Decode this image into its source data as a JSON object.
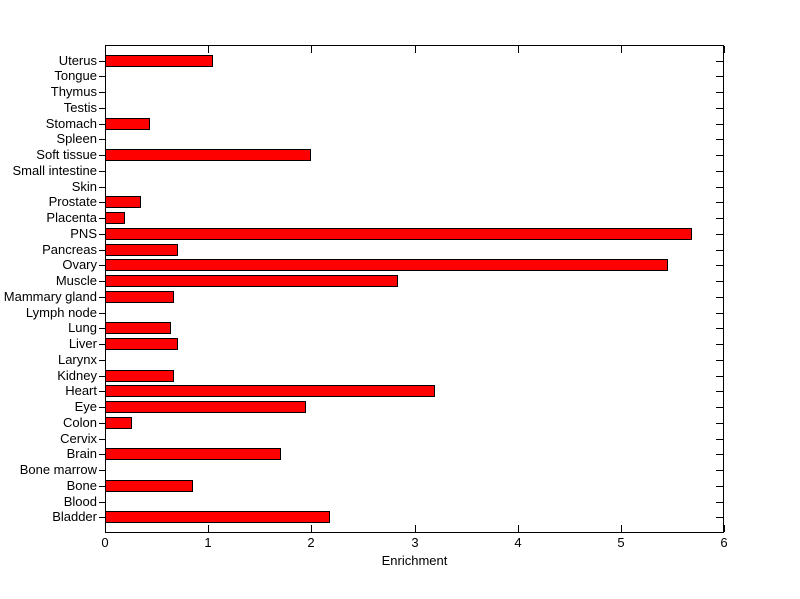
{
  "chart_data": {
    "type": "bar",
    "orientation": "horizontal",
    "title": "",
    "xlabel": "Enrichment",
    "ylabel": "",
    "xlim": [
      0,
      6
    ],
    "xticks": [
      0,
      1,
      2,
      3,
      4,
      5,
      6
    ],
    "xtick_labels": [
      "0",
      "1",
      "2",
      "3",
      "4",
      "5",
      "6"
    ],
    "grid": false,
    "legend": "none",
    "background_color": "#FFFFFF",
    "axis_color": "#000000",
    "bar_color": "#FF0000",
    "bar_edge_color": "#000000",
    "categories": [
      "Uterus",
      "Tongue",
      "Thymus",
      "Testis",
      "Stomach",
      "Spleen",
      "Soft tissue",
      "Small intestine",
      "Skin",
      "Prostate",
      "Placenta",
      "PNS",
      "Pancreas",
      "Ovary",
      "Muscle",
      "Mammary gland",
      "Lymph node",
      "Lung",
      "Liver",
      "Larynx",
      "Kidney",
      "Heart",
      "Eye",
      "Colon",
      "Cervix",
      "Brain",
      "Bone marrow",
      "Bone",
      "Blood",
      "Bladder"
    ],
    "values": [
      1.05,
      0,
      0,
      0,
      0.44,
      0,
      2.0,
      0,
      0,
      0.35,
      0.19,
      5.69,
      0.71,
      5.46,
      2.84,
      0.67,
      0,
      0.64,
      0.71,
      0,
      0.67,
      3.2,
      1.95,
      0.26,
      0,
      1.71,
      0,
      0.85,
      0,
      2.18
    ]
  }
}
